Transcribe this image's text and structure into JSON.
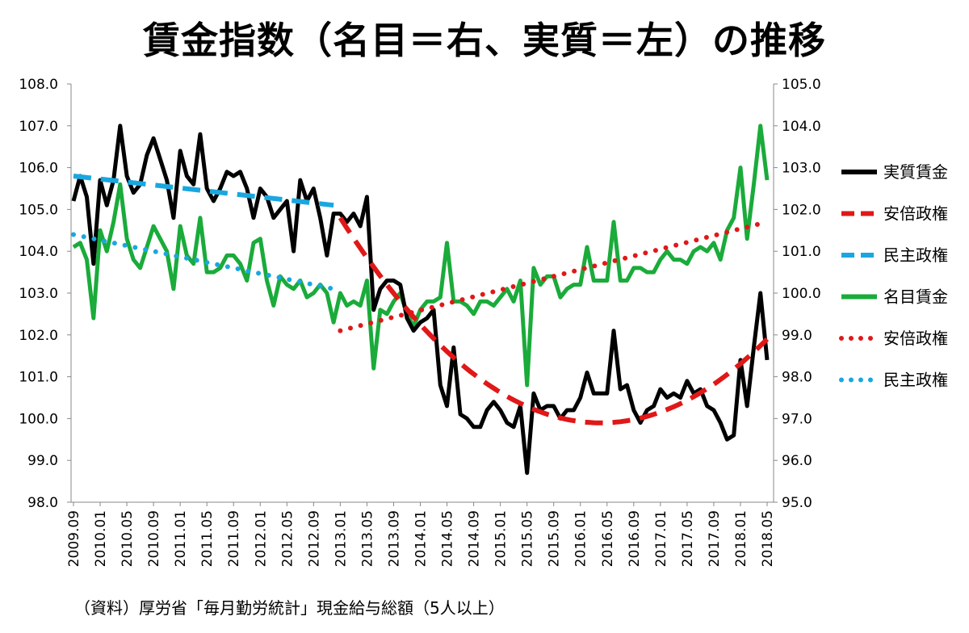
{
  "chart_data": {
    "type": "line",
    "title": "賃金指数（名目＝右、実質＝左）の推移",
    "source": "（資料）厚労省「毎月勤労統計」現金給与総額（5人以上）",
    "x_tick_labels": [
      "2009.09",
      "2010.01",
      "2010.05",
      "2010.09",
      "2011.01",
      "2011.05",
      "2011.09",
      "2012.01",
      "2012.05",
      "2012.09",
      "2013.01",
      "2013.05",
      "2013.09",
      "2014.01",
      "2014.05",
      "2014.09",
      "2015.01",
      "2015.05",
      "2015.09",
      "2016.01",
      "2016.05",
      "2016.09",
      "2017.01",
      "2017.05",
      "2017.09",
      "2018.01",
      "2018.05"
    ],
    "y_left": {
      "min": 98.0,
      "max": 108.0,
      "ticks": [
        "98.0",
        "99.0",
        "100.0",
        "101.0",
        "102.0",
        "103.0",
        "104.0",
        "105.0",
        "106.0",
        "107.0",
        "108.0"
      ]
    },
    "y_right": {
      "min": 95.0,
      "max": 105.0,
      "ticks": [
        "95.0",
        "96.0",
        "97.0",
        "98.0",
        "99.0",
        "100.0",
        "101.0",
        "102.0",
        "103.0",
        "104.0",
        "105.0"
      ]
    },
    "grid": false,
    "legend_position": "right",
    "colors": {
      "real": "#000000",
      "nominal": "#1aab3a",
      "abe": "#e01818",
      "dpj": "#1aa7e0"
    },
    "series": [
      {
        "name": "実質賃金",
        "axis": "left",
        "style": "solid",
        "start": "2009.09",
        "values": [
          105.2,
          105.8,
          105.3,
          103.7,
          105.7,
          105.1,
          105.7,
          107.0,
          105.8,
          105.4,
          105.6,
          106.3,
          106.7,
          106.2,
          105.7,
          104.8,
          106.4,
          105.8,
          105.6,
          106.8,
          105.5,
          105.2,
          105.5,
          105.9,
          105.8,
          105.9,
          105.5,
          104.8,
          105.5,
          105.3,
          104.8,
          105.0,
          105.2,
          104.0,
          105.7,
          105.2,
          105.5,
          104.8,
          103.9,
          104.9,
          104.9,
          104.7,
          104.9,
          104.6,
          105.3,
          102.6,
          103.1,
          103.3,
          103.3,
          103.2,
          102.4,
          102.1,
          102.3,
          102.4,
          102.6,
          100.8,
          100.3,
          101.7,
          100.1,
          100.0,
          99.8,
          99.8,
          100.2,
          100.4,
          100.2,
          99.9,
          99.8,
          100.3,
          98.7,
          100.6,
          100.2,
          100.3,
          100.3,
          100.0,
          100.2,
          100.2,
          100.5,
          101.1,
          100.6,
          100.6,
          100.6,
          102.1,
          100.7,
          100.8,
          100.2,
          99.9,
          100.2,
          100.3,
          100.7,
          100.5,
          100.6,
          100.5,
          100.9,
          100.6,
          100.7,
          100.3,
          100.2,
          99.9,
          99.5,
          99.6,
          101.4,
          100.3,
          101.7,
          103.0,
          101.4
        ]
      },
      {
        "name": "名目賃金",
        "axis": "right",
        "style": "solid",
        "start": "2009.09",
        "values": [
          101.1,
          101.2,
          100.8,
          99.4,
          101.5,
          101.0,
          101.7,
          102.6,
          101.3,
          100.8,
          100.6,
          101.1,
          101.6,
          101.3,
          101.0,
          100.1,
          101.6,
          100.9,
          100.7,
          101.8,
          100.5,
          100.5,
          100.6,
          100.9,
          100.9,
          100.7,
          100.3,
          101.2,
          101.3,
          100.3,
          99.7,
          100.4,
          100.2,
          100.1,
          100.3,
          99.9,
          100.0,
          100.2,
          100.0,
          99.3,
          100.0,
          99.7,
          99.8,
          99.7,
          100.3,
          98.2,
          99.6,
          99.5,
          99.8,
          100.0,
          99.5,
          99.2,
          99.6,
          99.8,
          99.8,
          99.9,
          101.2,
          99.8,
          99.8,
          99.7,
          99.5,
          99.8,
          99.8,
          99.7,
          99.9,
          100.1,
          99.8,
          100.3,
          97.8,
          100.6,
          100.2,
          100.4,
          100.4,
          99.9,
          100.1,
          100.2,
          100.2,
          101.1,
          100.3,
          100.3,
          100.3,
          101.7,
          100.3,
          100.3,
          100.6,
          100.6,
          100.5,
          100.5,
          100.8,
          101.0,
          100.8,
          100.8,
          100.7,
          101.0,
          101.1,
          101.0,
          101.2,
          100.8,
          101.5,
          101.8,
          103.0,
          101.3,
          102.6,
          104.0,
          102.7
        ]
      },
      {
        "name": "安倍政権",
        "axis": "left",
        "style": "dashed",
        "kind": "quadratic-trend",
        "from": "2013.01",
        "to": "2018.05",
        "note_points": [
          [
            "2013.01",
            104.8
          ],
          [
            "2016.05",
            99.9
          ],
          [
            "2018.05",
            101.9
          ]
        ]
      },
      {
        "name": "民主政権",
        "axis": "left",
        "style": "dashed",
        "kind": "linear-trend",
        "from": "2009.09",
        "to": "2012.12",
        "endpoints": [
          105.8,
          105.1
        ]
      },
      {
        "name": "安倍政権",
        "axis": "right",
        "style": "dotted",
        "kind": "linear-trend",
        "from": "2013.01",
        "to": "2018.05",
        "endpoints": [
          99.1,
          101.7
        ]
      },
      {
        "name": "民主政権",
        "axis": "right",
        "style": "dotted",
        "kind": "linear-trend",
        "from": "2009.09",
        "to": "2012.12",
        "endpoints": [
          101.4,
          100.1
        ]
      }
    ],
    "legend": [
      {
        "label": "実質賃金",
        "color": "#000000",
        "style": "solid"
      },
      {
        "label": "安倍政権",
        "color": "#e01818",
        "style": "dashed"
      },
      {
        "label": "民主政権",
        "color": "#1aa7e0",
        "style": "dashed"
      },
      {
        "label": "名目賃金",
        "color": "#1aab3a",
        "style": "solid"
      },
      {
        "label": "安倍政権",
        "color": "#e01818",
        "style": "dotted"
      },
      {
        "label": "民主政権",
        "color": "#1aa7e0",
        "style": "dotted"
      }
    ]
  }
}
